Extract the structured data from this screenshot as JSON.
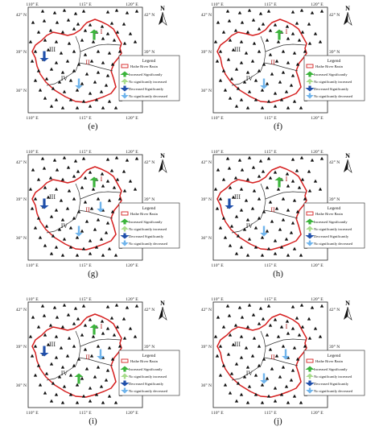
{
  "map_labels": {
    "lon_110": "110° E",
    "lon_115": "115° E",
    "lon_120": "120° E",
    "lat_42": "42° N",
    "lat_39": "39° N",
    "lat_36": "36° N",
    "north": "N"
  },
  "legend": {
    "title": "Legend",
    "basin": "Haihe River Basin",
    "inc_sig": "Increased Significantly",
    "inc_nosig": "No significantly increased",
    "dec_sig": "Decreased Significantly",
    "dec_nosig": "No significantly decreased"
  },
  "regions": [
    "I",
    "II",
    "III",
    "IV"
  ],
  "colors": {
    "basin": "#d62020",
    "inc_sig": "#3cb43c",
    "inc_nosig": "#a8dc8c",
    "dec_sig": "#1f4faa",
    "dec_nosig": "#6fb4ec",
    "region_label": "#b01818"
  },
  "panels": [
    {
      "label": "(e)",
      "arrows": {
        "I": "inc_sig",
        "II": "none",
        "III": "dec_sig",
        "IV": "dec_nosig"
      }
    },
    {
      "label": "(f)",
      "arrows": {
        "I": "inc_sig",
        "II": "none",
        "III": "none",
        "IV": "dec_nosig"
      }
    },
    {
      "label": "(g)",
      "arrows": {
        "I": "inc_sig",
        "II": "dec_nosig",
        "III": "dec_sig",
        "IV": "dec_nosig"
      }
    },
    {
      "label": "(h)",
      "arrows": {
        "I": "inc_sig",
        "II": "none",
        "III": "dec_sig",
        "IV": "dec_nosig"
      }
    },
    {
      "label": "(i)",
      "arrows": {
        "I": "inc_sig",
        "II": "dec_nosig",
        "III": "dec_sig",
        "IV": "inc_sig"
      }
    },
    {
      "label": "(j)",
      "arrows": {
        "I": "none",
        "II": "dec_nosig",
        "III": "none",
        "IV": "dec_nosig"
      }
    }
  ]
}
